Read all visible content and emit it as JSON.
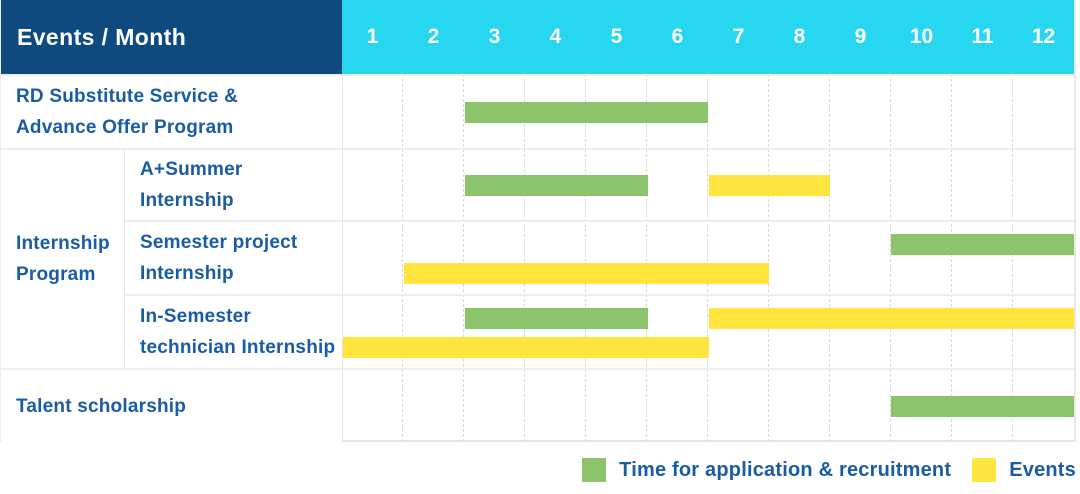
{
  "colors": {
    "navy": "#0E4A7D",
    "cyan": "#27D6EF",
    "green": "#8BC46A",
    "yellow": "#FFE53E",
    "text_blue": "#1A5CA4"
  },
  "header": {
    "title": "Events / Month",
    "months": [
      "1",
      "2",
      "3",
      "4",
      "5",
      "6",
      "7",
      "8",
      "9",
      "10",
      "11",
      "12"
    ]
  },
  "legend": {
    "application": "Time for application & recruitment",
    "events": "Events"
  },
  "chart_data": {
    "type": "bar",
    "subtype": "gantt",
    "title": "Events / Month",
    "x_axis": {
      "unit": "month",
      "range": [
        1,
        12
      ],
      "ticks": [
        1,
        2,
        3,
        4,
        5,
        6,
        7,
        8,
        9,
        10,
        11,
        12
      ]
    },
    "legend": [
      {
        "name": "Time for application & recruitment",
        "color": "#8BC46A"
      },
      {
        "name": "Events",
        "color": "#FFE53E"
      }
    ],
    "group_label": "Internship\nProgram",
    "rows": [
      {
        "group": "",
        "label": "RD Substitute Service &\nAdvance Offer Program",
        "bars": [
          {
            "series": "Time for application & recruitment",
            "color_key": "green",
            "start_month": 3,
            "end_month": 6,
            "level": "center"
          }
        ]
      },
      {
        "group": "Internship Program",
        "label": "A+Summer\nInternship",
        "bars": [
          {
            "series": "Time for application & recruitment",
            "color_key": "green",
            "start_month": 3,
            "end_month": 5,
            "level": "center"
          },
          {
            "series": "Events",
            "color_key": "yellow",
            "start_month": 7,
            "end_month": 8,
            "level": "center"
          }
        ]
      },
      {
        "group": "Internship Program",
        "label": "Semester project\nInternship",
        "bars": [
          {
            "series": "Time for application & recruitment",
            "color_key": "green",
            "start_month": 10,
            "end_month": 12,
            "level": "upper"
          },
          {
            "series": "Events",
            "color_key": "yellow",
            "start_month": 2,
            "end_month": 7,
            "level": "lower"
          }
        ]
      },
      {
        "group": "Internship Program",
        "label": "In-Semester\ntechnician Internship",
        "bars": [
          {
            "series": "Time for application & recruitment",
            "color_key": "green",
            "start_month": 3,
            "end_month": 5,
            "level": "upper"
          },
          {
            "series": "Events",
            "color_key": "yellow",
            "start_month": 7,
            "end_month": 12,
            "level": "upper"
          },
          {
            "series": "Events",
            "color_key": "yellow",
            "start_month": 1,
            "end_month": 6,
            "level": "lower"
          }
        ]
      },
      {
        "group": "",
        "label": "Talent scholarship",
        "bars": [
          {
            "series": "Time for application & recruitment",
            "color_key": "green",
            "start_month": 10,
            "end_month": 12,
            "level": "center"
          }
        ]
      }
    ]
  }
}
